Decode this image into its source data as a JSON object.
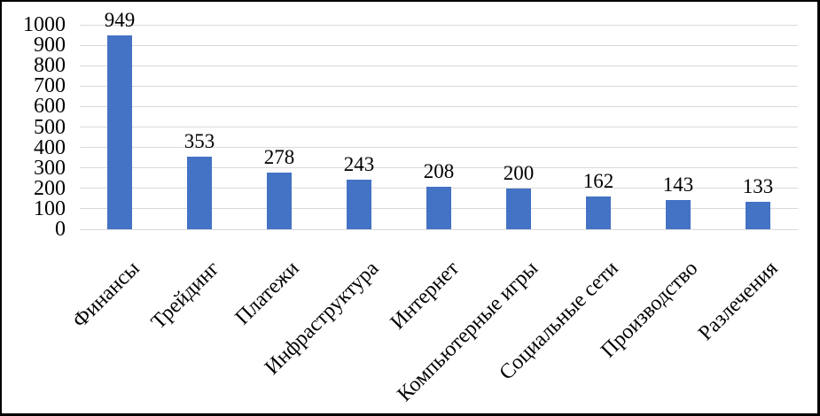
{
  "chart_data": {
    "type": "bar",
    "categories": [
      "Финансы",
      "Трейдинг",
      "Платежи",
      "Инфраструктура",
      "Интернет",
      "Компьютерные игры",
      "Социальные сети",
      "Производство",
      "Разлечения"
    ],
    "values": [
      949,
      353,
      278,
      243,
      208,
      200,
      162,
      143,
      133
    ],
    "data_labels": [
      "949",
      "353",
      "278",
      "243",
      "208",
      "200",
      "162",
      "143",
      "133"
    ],
    "yticks": [
      0,
      100,
      200,
      300,
      400,
      500,
      600,
      700,
      800,
      900,
      1000
    ],
    "ylim": [
      0,
      1000
    ],
    "title": "",
    "xlabel": "",
    "ylabel": "",
    "grid": true,
    "legend": false,
    "x_tick_rotation_deg": 45,
    "colors": {
      "bar_fill": "#4472C4",
      "gridline": "#D9D9D9",
      "text": "#000000",
      "frame_border": "#000000",
      "background": "#FFFFFF"
    }
  }
}
